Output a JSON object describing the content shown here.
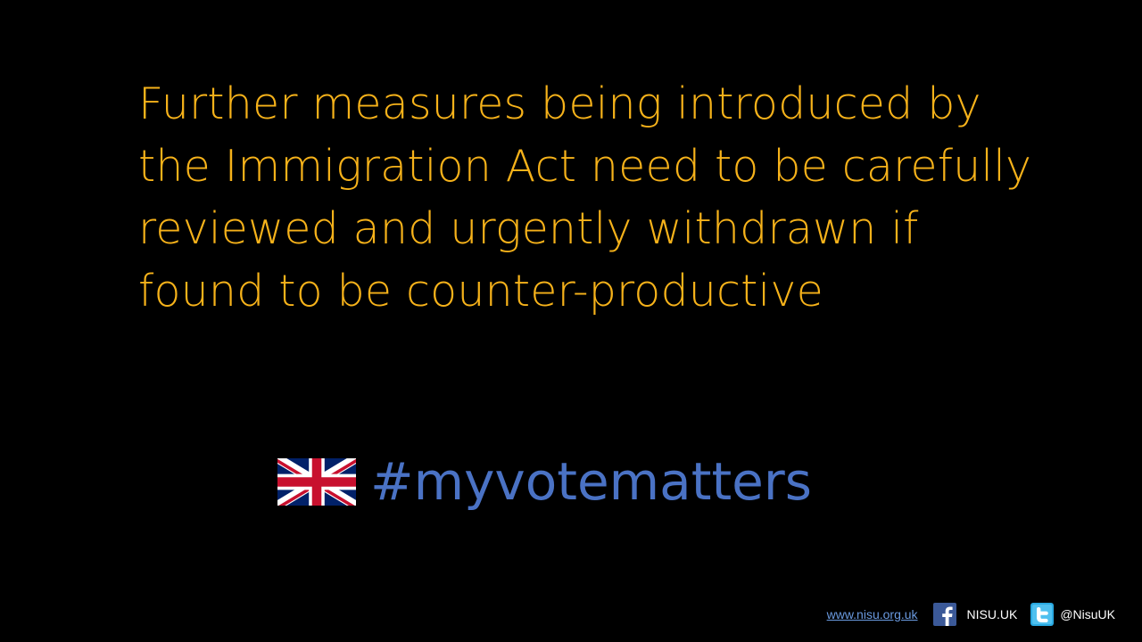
{
  "headline": {
    "lines": [
      "Further measures being introduced by",
      "the Immigration Act need to be carefully",
      "reviewed and urgently withdrawn if",
      "found to be counter-productive"
    ]
  },
  "hashtag": {
    "text": "#myvotematters",
    "flag_icon": "uk-flag-icon"
  },
  "footer": {
    "website": "www.nisu.org.uk",
    "facebook_handle": "NISU.UK",
    "facebook_icon": "facebook-icon",
    "twitter_handle": "@NisuUK",
    "twitter_icon": "twitter-icon"
  },
  "colors": {
    "background": "#000000",
    "headline": "#f6b21a",
    "hashtag": "#4a72c4",
    "link": "#6a9ae0",
    "footer_text": "#ffffff",
    "facebook": "#3b5998",
    "twitter": "#29a9e1"
  }
}
